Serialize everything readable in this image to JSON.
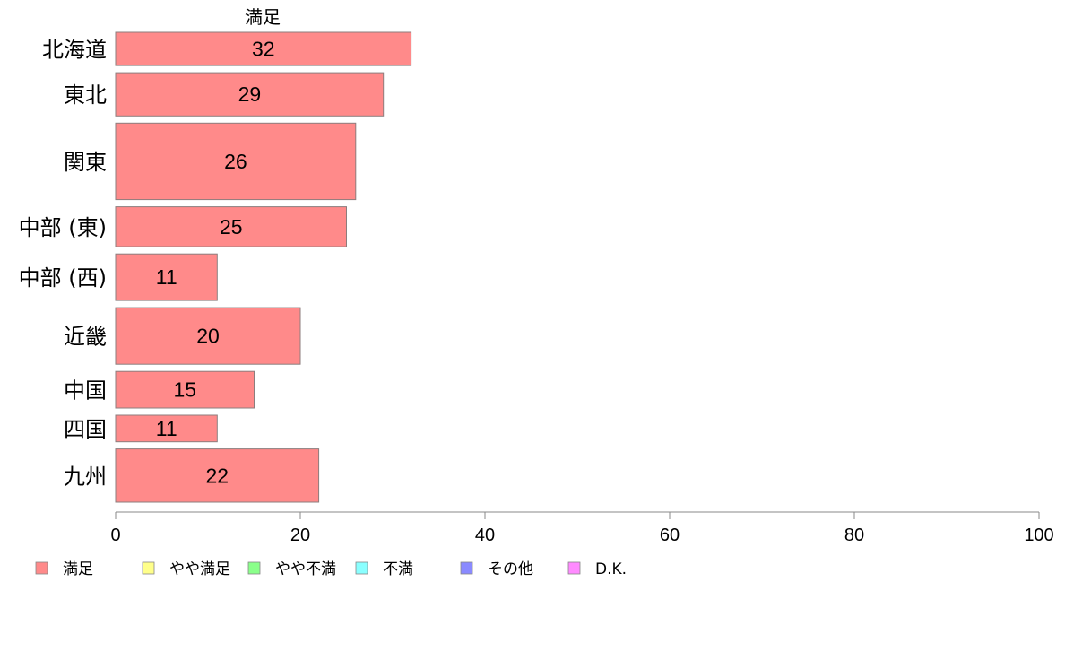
{
  "chart_data": {
    "type": "bar",
    "orientation": "horizontal",
    "series_heading": "満足",
    "categories": [
      "北海道",
      "東北",
      "関東",
      "中部 (東)",
      "中部 (西)",
      "近畿",
      "中国",
      "四国",
      "九州"
    ],
    "series": [
      {
        "name": "満足",
        "values": [
          32,
          29,
          26,
          25,
          11,
          20,
          15,
          11,
          22
        ]
      }
    ],
    "bar_weights": [
      1.0,
      1.3,
      2.3,
      1.2,
      1.4,
      1.7,
      1.1,
      0.8,
      1.6
    ],
    "xlim": [
      0,
      100
    ],
    "xticks": [
      0,
      20,
      40,
      60,
      80,
      100
    ],
    "grid": false,
    "legend_position": "bottom",
    "legend": [
      {
        "label": "満足",
        "color": "#ff8a8a"
      },
      {
        "label": "やや満足",
        "color": "#ffff8a"
      },
      {
        "label": "やや不満",
        "color": "#8aff8a"
      },
      {
        "label": "不満",
        "color": "#8affff"
      },
      {
        "label": "その他",
        "color": "#8a8aff"
      },
      {
        "label": "D.K.",
        "color": "#ff8aff"
      }
    ],
    "colors": {
      "bar_fill": "#ff8a8a",
      "bar_stroke": "#8c7d7d",
      "axis": "#888888"
    }
  }
}
